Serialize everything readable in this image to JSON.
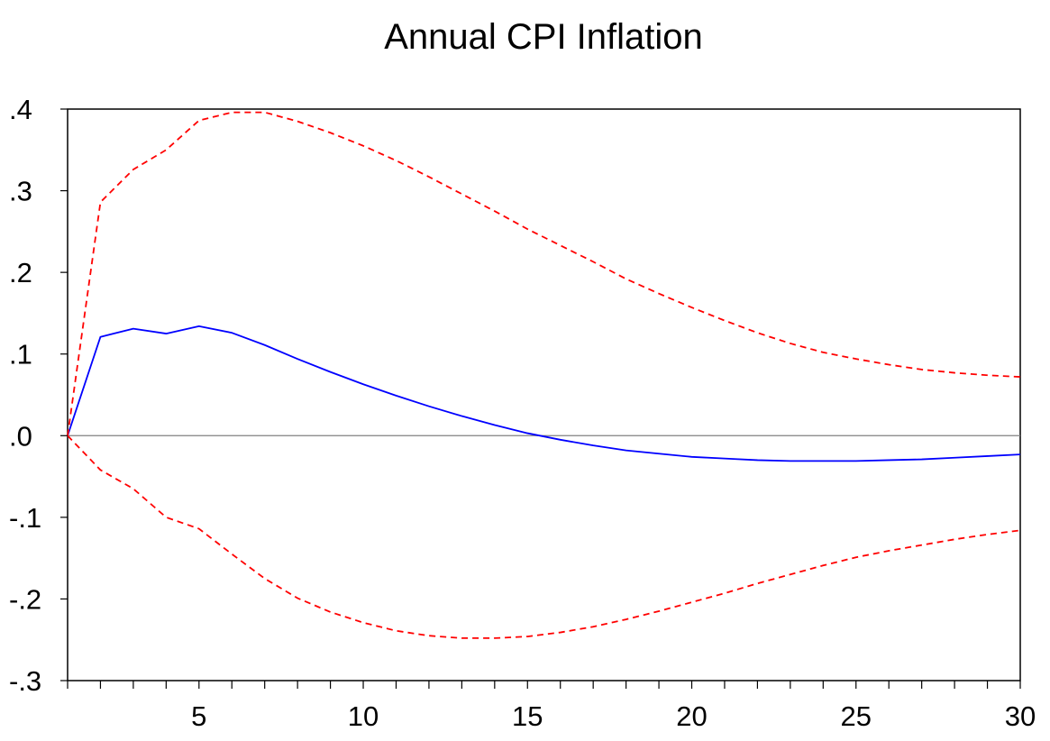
{
  "chart_data": {
    "type": "line",
    "title": "Annual CPI Inflation",
    "xlabel": "",
    "ylabel": "",
    "xlim": [
      1,
      30
    ],
    "ylim": [
      -0.3,
      0.4
    ],
    "x_ticks": [
      5,
      10,
      15,
      20,
      25,
      30
    ],
    "x_tick_labels": [
      "5",
      "10",
      "15",
      "20",
      "25",
      "30"
    ],
    "y_ticks": [
      0.4,
      0.3,
      0.2,
      0.1,
      0.0,
      -0.1,
      -0.2,
      -0.3
    ],
    "y_tick_labels": [
      ".4",
      ".3",
      ".2",
      ".1",
      ".0",
      "-.1",
      "-.2",
      "-.3"
    ],
    "zero_line": true,
    "grid": false,
    "legend": "none",
    "x": [
      1,
      2,
      3,
      4,
      5,
      6,
      7,
      8,
      9,
      10,
      11,
      12,
      13,
      14,
      15,
      16,
      17,
      18,
      19,
      20,
      21,
      22,
      23,
      24,
      25,
      26,
      27,
      28,
      29,
      30
    ],
    "series": [
      {
        "style": "solid",
        "color": "#0000ff",
        "values": [
          0.0,
          0.121,
          0.131,
          0.125,
          0.134,
          0.126,
          0.111,
          0.094,
          0.078,
          0.063,
          0.049,
          0.036,
          0.024,
          0.013,
          0.003,
          -0.005,
          -0.012,
          -0.018,
          -0.022,
          -0.026,
          -0.028,
          -0.03,
          -0.031,
          -0.031,
          -0.031,
          -0.03,
          -0.029,
          -0.027,
          -0.025,
          -0.023
        ]
      },
      {
        "style": "dashed",
        "color": "#ff0000",
        "values": [
          0.0,
          0.286,
          0.326,
          0.35,
          0.386,
          0.396,
          0.396,
          0.385,
          0.371,
          0.355,
          0.337,
          0.317,
          0.296,
          0.275,
          0.253,
          0.233,
          0.213,
          0.192,
          0.174,
          0.157,
          0.141,
          0.126,
          0.113,
          0.102,
          0.094,
          0.087,
          0.081,
          0.077,
          0.074,
          0.072
        ]
      },
      {
        "style": "dashed",
        "color": "#ff0000",
        "values": [
          0.0,
          -0.042,
          -0.065,
          -0.1,
          -0.114,
          -0.145,
          -0.175,
          -0.199,
          -0.216,
          -0.229,
          -0.239,
          -0.245,
          -0.248,
          -0.248,
          -0.246,
          -0.241,
          -0.234,
          -0.225,
          -0.215,
          -0.204,
          -0.193,
          -0.181,
          -0.17,
          -0.159,
          -0.149,
          -0.141,
          -0.134,
          -0.127,
          -0.121,
          -0.116
        ]
      }
    ]
  }
}
